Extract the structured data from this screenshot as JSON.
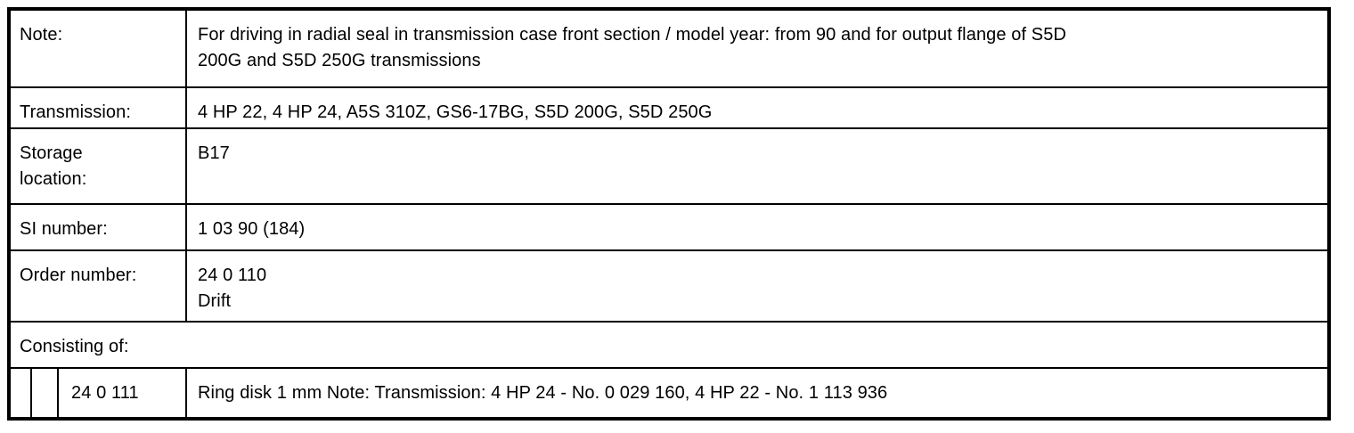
{
  "colors": {
    "border": "#000000",
    "text": "#000000",
    "background": "#ffffff"
  },
  "table": {
    "rows": [
      {
        "label": "Note:",
        "value": "For driving in radial seal in transmission case front section / model year: from 90 and for output flange of S5D\n200G and S5D 250G transmissions"
      },
      {
        "label": "Transmission:",
        "value": "4 HP 22, 4 HP 24, A5S 310Z, GS6-17BG, S5D 200G, S5D 250G"
      },
      {
        "label": "Storage\nlocation:",
        "value": "B17"
      },
      {
        "label": "SI number:",
        "value": "1 03 90 (184)"
      },
      {
        "label": "Order number:",
        "value": "24 0 110\nDrift"
      }
    ],
    "consisting_of": {
      "label": "Consisting of:"
    },
    "item": {
      "number": "24 0 111",
      "description": "Ring disk 1 mm Note: Transmission: 4 HP 24 - No. 0 029 160, 4 HP 22 - No. 1 113 936"
    }
  }
}
